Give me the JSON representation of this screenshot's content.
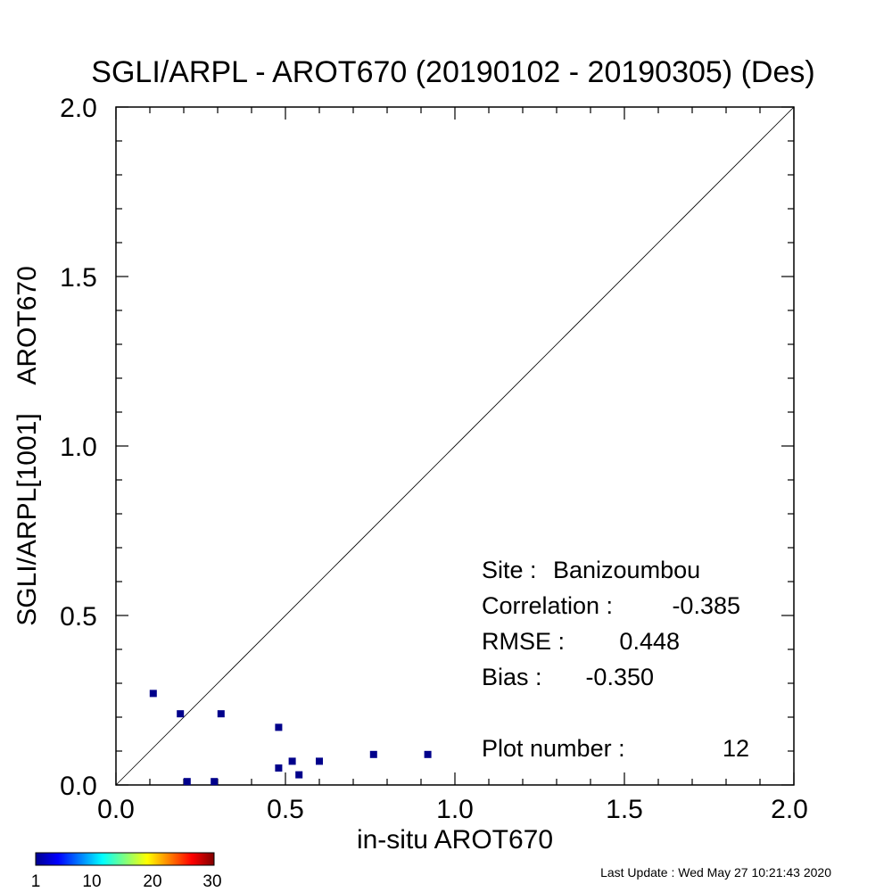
{
  "chart_data": {
    "type": "scatter",
    "title": "SGLI/ARPL - AROT670 (20190102 - 20190305) (Des)",
    "xlabel": "in-situ AROT670",
    "ylabel": "SGLI/ARPL[1001]    AROT670",
    "xlim": [
      0.0,
      2.0
    ],
    "ylim": [
      0.0,
      2.0
    ],
    "xticks": [
      "0.0",
      "0.5",
      "1.0",
      "1.5",
      "2.0"
    ],
    "yticks": [
      "0.0",
      "0.5",
      "1.0",
      "1.5",
      "2.0"
    ],
    "grid": false,
    "one_to_one_line": true,
    "marker_color": "#00008b",
    "points": [
      {
        "x": 0.11,
        "y": 0.27
      },
      {
        "x": 0.19,
        "y": 0.21
      },
      {
        "x": 0.31,
        "y": 0.21
      },
      {
        "x": 0.48,
        "y": 0.17
      },
      {
        "x": 0.21,
        "y": 0.01
      },
      {
        "x": 0.29,
        "y": 0.01
      },
      {
        "x": 0.48,
        "y": 0.05
      },
      {
        "x": 0.52,
        "y": 0.07
      },
      {
        "x": 0.54,
        "y": 0.03
      },
      {
        "x": 0.6,
        "y": 0.07
      },
      {
        "x": 0.76,
        "y": 0.09
      },
      {
        "x": 0.92,
        "y": 0.09
      }
    ],
    "stats": {
      "site_label": "Site :",
      "site_value": "Banizoumbou",
      "correlation_label": "Correlation :",
      "correlation_value": "-0.385",
      "rmse_label": "RMSE :",
      "rmse_value": "0.448",
      "bias_label": "Bias :",
      "bias_value": "-0.350",
      "plot_number_label": "Plot number :",
      "plot_number_value": "12"
    },
    "colorbar": {
      "tick_labels": [
        "1",
        "10",
        "20",
        "30"
      ],
      "colormap": "jet"
    },
    "footer": "Last Update : Wed May 27 10:21:43 2020"
  }
}
